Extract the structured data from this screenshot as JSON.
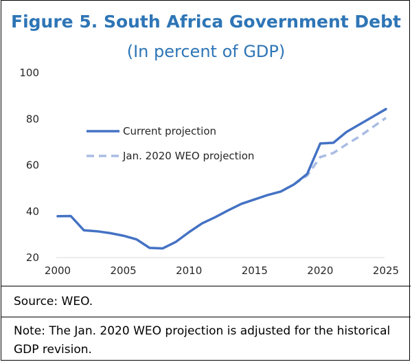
{
  "header": {
    "title": "Figure 5. South Africa Government Debt",
    "subtitle": "(In percent of GDP)"
  },
  "footer": {
    "source": "Source: WEO.",
    "note": "Note: The Jan. 2020 WEO projection is adjusted for the historical GDP revision."
  },
  "colors": {
    "title": "#2e75b6",
    "current": "#4472c4",
    "jan2020": "#a9bce3"
  },
  "chart_data": {
    "type": "line",
    "title": "Figure 5. South Africa Government Debt",
    "subtitle": "(In percent of GDP)",
    "xlabel": "",
    "ylabel": "",
    "xlim": [
      2000,
      2025
    ],
    "ylim": [
      20,
      100
    ],
    "xticks": [
      2000,
      2005,
      2010,
      2015,
      2020,
      2025
    ],
    "yticks": [
      20,
      40,
      60,
      80,
      100
    ],
    "grid": false,
    "legend_position": "upper-left",
    "series": [
      {
        "name": "Current projection",
        "style": "solid",
        "color": "#4472c4",
        "x": [
          2000,
          2001,
          2002,
          2003,
          2004,
          2005,
          2006,
          2007,
          2008,
          2009,
          2010,
          2011,
          2012,
          2013,
          2014,
          2015,
          2016,
          2017,
          2018,
          2019,
          2020,
          2021,
          2022,
          2023,
          2024,
          2025
        ],
        "values": [
          37.9,
          38.0,
          31.8,
          31.4,
          30.6,
          29.5,
          27.9,
          24.2,
          24.0,
          26.8,
          31.0,
          34.8,
          37.5,
          40.5,
          43.3,
          45.2,
          47.1,
          48.6,
          51.7,
          56.2,
          69.4,
          69.7,
          74.4,
          77.7,
          81.0,
          84.3
        ]
      },
      {
        "name": "Jan. 2020 WEO projection",
        "style": "dashed",
        "color": "#a9bce3",
        "x": [
          2018,
          2019,
          2020,
          2021,
          2022,
          2023,
          2024,
          2025
        ],
        "values": [
          51.7,
          55.5,
          63.5,
          65.3,
          69.0,
          72.5,
          76.5,
          80.5
        ]
      }
    ]
  }
}
